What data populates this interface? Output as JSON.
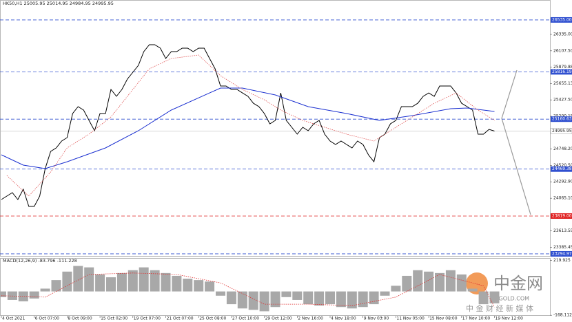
{
  "chart_data": [
    {
      "type": "line",
      "title": "HK50,H1 25005.95 25014.95 24984.95 24995.95",
      "categories": [
        "4 Oct 2021",
        null,
        null,
        null,
        null,
        null,
        "6 Oct 07:00",
        null,
        null,
        null,
        null,
        null,
        "8 Oct 09:00",
        null,
        null,
        null,
        null,
        null,
        "15 Oct 02:00",
        null,
        null,
        null,
        null,
        null,
        "19 Oct 07:00",
        null,
        null,
        null,
        null,
        null,
        "21 Oct 07:00",
        null,
        null,
        null,
        null,
        null,
        "25 Oct 08:00",
        null,
        null,
        null,
        null,
        null,
        "27 Oct 10:00",
        null,
        null,
        null,
        null,
        null,
        "29 Oct 12:00",
        null,
        null,
        null,
        null,
        null,
        "2 Nov 16:00",
        null,
        null,
        null,
        null,
        null,
        "4 Nov 18:00",
        null,
        null,
        null,
        null,
        null,
        "9 Nov 03:00",
        null,
        null,
        null,
        null,
        null,
        "11 Nov 05:00",
        null,
        null,
        null,
        null,
        null,
        "15 Nov 08:00",
        null,
        null,
        null,
        null,
        null,
        "17 Nov 10:00",
        null,
        null,
        null,
        null,
        null,
        "19 Nov 12:00"
      ],
      "series": [
        {
          "color": "#000000",
          "values": [
            24047,
            24095,
            24143,
            24047,
            24190,
            23952,
            23952,
            24095,
            24476,
            24714,
            24762,
            24857,
            24905,
            25239,
            25334,
            25286,
            25143,
            25000,
            25239,
            25239,
            25572,
            25477,
            25572,
            25715,
            25810,
            25906,
            26096,
            26192,
            26192,
            26144,
            26001,
            26096,
            26096,
            26144,
            26144,
            26096,
            26144,
            26144,
            26001,
            25858,
            25620,
            25620,
            25572,
            25572,
            25524,
            25477,
            25381,
            25334,
            25239,
            25096,
            25143,
            25524,
            25143,
            25048,
            24953,
            25048,
            25000,
            25096,
            25143,
            24953,
            24857,
            24810,
            24857,
            24810,
            24762,
            24857,
            24810,
            24667,
            24571,
            24905,
            24953,
            25096,
            25143,
            25334,
            25334,
            25334,
            25381,
            25477,
            25524,
            25477,
            25620,
            25620,
            25620,
            25524,
            25381,
            25334,
            25286,
            24953,
            24953,
            25019,
            24996
          ]
        },
        {
          "color": "#1a2fd0",
          "x": [
            0,
            4,
            8,
            12,
            19,
            25,
            31,
            38,
            40,
            44,
            50,
            56,
            63,
            69,
            75,
            82,
            85,
            90
          ],
          "values": [
            24667,
            24524,
            24476,
            24571,
            24762,
            25000,
            25286,
            25524,
            25591,
            25591,
            25496,
            25334,
            25239,
            25143,
            25210,
            25305,
            25315,
            25267
          ]
        },
        {
          "color": "#e05050",
          "dashed": true,
          "x": [
            1,
            5,
            9,
            12,
            16,
            20,
            24,
            27,
            31,
            36,
            40,
            44,
            48,
            51,
            55,
            59,
            63,
            68,
            71,
            75,
            79,
            83,
            87,
            90
          ],
          "values": [
            24381,
            24095,
            24429,
            24762,
            24953,
            25191,
            25572,
            25858,
            26001,
            26049,
            25763,
            25572,
            25429,
            25286,
            25143,
            25048,
            24953,
            24857,
            25000,
            25191,
            25381,
            25524,
            25286,
            25143
          ]
        }
      ],
      "ylim": [
        23266,
        26811
      ],
      "yticks": [
        {
          "value": 26335,
          "label": "26335.00"
        },
        {
          "value": 26107.5,
          "label": "26107.50"
        },
        {
          "value": 25879.88,
          "label": "25879.88"
        },
        {
          "value": 25655.13,
          "label": "25655.13"
        },
        {
          "value": 25427.5,
          "label": "25427.50"
        },
        {
          "value": 25200.15,
          "label": "25200.15"
        },
        {
          "value": 24748.2,
          "label": "24748.20"
        },
        {
          "value": 24520.5,
          "label": "24520.50"
        },
        {
          "value": 24292.9,
          "label": "24292.90"
        },
        {
          "value": 24065.1,
          "label": "24065.10"
        },
        {
          "value": 23613.55,
          "label": "23613.55"
        },
        {
          "value": 23385.45,
          "label": "23385.45"
        }
      ],
      "levels": [
        {
          "value": 26535,
          "label": "26535.00",
          "color": "#3050d0"
        },
        {
          "value": 25816.19,
          "label": "25816.19",
          "color": "#3050d0"
        },
        {
          "value": 25160.63,
          "label": "25160.63",
          "color": "#3050d0"
        },
        {
          "value": 24469.38,
          "label": "24469.38",
          "color": "#3050d0"
        },
        {
          "value": 23819,
          "label": "23819.00",
          "color": "#e02020"
        },
        {
          "value": 23294.97,
          "label": "23294.97",
          "color": "#3050d0"
        }
      ],
      "current": {
        "value": 24995.95,
        "label": "24995.95"
      }
    },
    {
      "type": "bar",
      "title": "MACD(12,26,9) -83.796 -111.228",
      "color": "#a8a8a8",
      "x": [
        0,
        2,
        4,
        6,
        8,
        10,
        12,
        14,
        16,
        18,
        20,
        22,
        24,
        26,
        28,
        30,
        32,
        34,
        36,
        38,
        40,
        42,
        44,
        46,
        48,
        50,
        52,
        54,
        56,
        58,
        60,
        62,
        64,
        66,
        68,
        70,
        72,
        74,
        76,
        78,
        80,
        82,
        84,
        86,
        88,
        90
      ],
      "values": [
        -40,
        -60,
        -70,
        -50,
        20,
        80,
        140,
        180,
        170,
        120,
        100,
        130,
        150,
        170,
        150,
        130,
        110,
        90,
        80,
        70,
        -30,
        -90,
        -120,
        -130,
        -140,
        -110,
        -40,
        -60,
        -90,
        -100,
        -90,
        -110,
        -120,
        -110,
        -90,
        -30,
        40,
        110,
        150,
        140,
        130,
        150,
        120,
        20,
        -90,
        -84
      ],
      "signal": {
        "color": "#e03030",
        "x": [
          0,
          8,
          16,
          24,
          32,
          40,
          48,
          56,
          64,
          72,
          80,
          88,
          90
        ],
        "values": [
          -30,
          -40,
          120,
          130,
          120,
          60,
          -90,
          -90,
          -100,
          -40,
          120,
          40,
          -111
        ]
      },
      "ylim": [
        -172,
        236
      ],
      "yticks": [
        219.925,
        -168.112
      ]
    }
  ],
  "watermark": {
    "brand": "中金网",
    "site": "CNGOLD.COM",
    "tagline": "中 金 财 经 新 媒 体"
  }
}
